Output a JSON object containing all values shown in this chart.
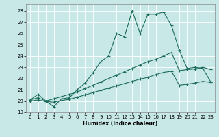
{
  "title": "",
  "xlabel": "Humidex (Indice chaleur)",
  "ylabel": "",
  "bg_color": "#c8e8e8",
  "grid_color": "#ffffff",
  "line_color": "#1a6b5a",
  "xlim": [
    -0.5,
    23.5
  ],
  "ylim": [
    19,
    28.6
  ],
  "yticks": [
    19,
    20,
    21,
    22,
    23,
    24,
    25,
    26,
    27,
    28
  ],
  "xticks": [
    0,
    1,
    2,
    3,
    4,
    5,
    6,
    7,
    8,
    9,
    10,
    11,
    12,
    13,
    14,
    15,
    16,
    17,
    18,
    19,
    20,
    21,
    22,
    23
  ],
  "series": [
    {
      "x": [
        0,
        1,
        2,
        3,
        4,
        5,
        6,
        7,
        8,
        9,
        10,
        11,
        12,
        13,
        14,
        15,
        16,
        17,
        18,
        19,
        20,
        21,
        22,
        23
      ],
      "y": [
        20.1,
        20.6,
        20.0,
        19.5,
        20.2,
        20.3,
        21.0,
        21.6,
        22.5,
        23.5,
        24.0,
        26.0,
        25.7,
        28.0,
        26.0,
        27.7,
        27.7,
        27.9,
        26.7,
        24.5,
        22.9,
        23.0,
        22.9,
        21.7
      ]
    },
    {
      "x": [
        0,
        1,
        2,
        3,
        4,
        5,
        6,
        7,
        8,
        9,
        10,
        11,
        12,
        13,
        14,
        15,
        16,
        17,
        18,
        19,
        20,
        21,
        22,
        23
      ],
      "y": [
        20.1,
        20.3,
        20.0,
        20.2,
        20.4,
        20.6,
        20.8,
        21.1,
        21.4,
        21.7,
        22.0,
        22.3,
        22.6,
        22.9,
        23.2,
        23.5,
        23.7,
        24.0,
        24.3,
        22.7,
        22.8,
        22.85,
        23.0,
        22.8
      ]
    },
    {
      "x": [
        0,
        1,
        2,
        3,
        4,
        5,
        6,
        7,
        8,
        9,
        10,
        11,
        12,
        13,
        14,
        15,
        16,
        17,
        18,
        19,
        20,
        21,
        22,
        23
      ],
      "y": [
        20.0,
        20.1,
        19.95,
        19.9,
        20.05,
        20.15,
        20.35,
        20.55,
        20.75,
        20.95,
        21.15,
        21.35,
        21.55,
        21.75,
        21.95,
        22.1,
        22.35,
        22.55,
        22.65,
        21.4,
        21.5,
        21.6,
        21.75,
        21.65
      ]
    }
  ]
}
